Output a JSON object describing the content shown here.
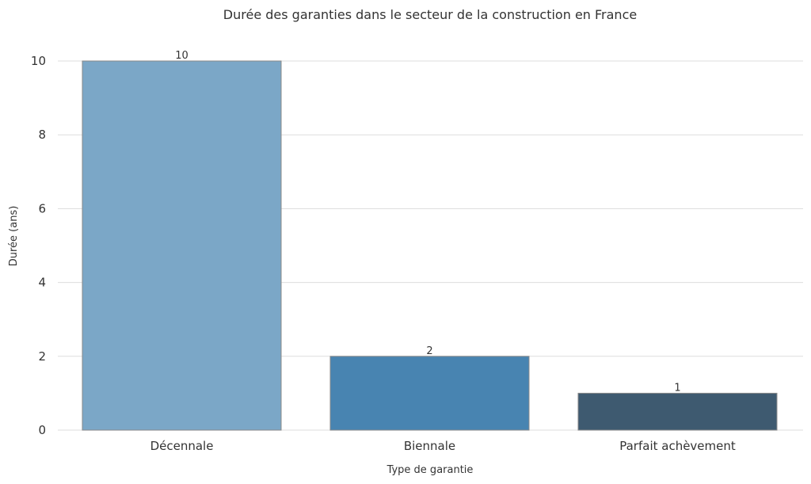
{
  "chart_data": {
    "type": "bar",
    "title": "Durée des garanties dans le secteur de la construction en France",
    "xlabel": "Type de garantie",
    "ylabel": "Durée (ans)",
    "categories": [
      "Décennale",
      "Biennale",
      "Parfait achèvement"
    ],
    "values": [
      10,
      2,
      1
    ],
    "data_labels": [
      "10",
      "2",
      "1"
    ],
    "ylim": [
      0,
      10
    ],
    "yticks": [
      0,
      2,
      4,
      6,
      8,
      10
    ],
    "ytick_labels": [
      "0",
      "2",
      "4",
      "6",
      "8",
      "10"
    ],
    "grid": true,
    "legend": "none",
    "colors": [
      "#7ba7c7",
      "#4884b1",
      "#3e5a70"
    ],
    "grid_color": "#dddddd",
    "bar_edge_color": "#8a8a8a"
  }
}
